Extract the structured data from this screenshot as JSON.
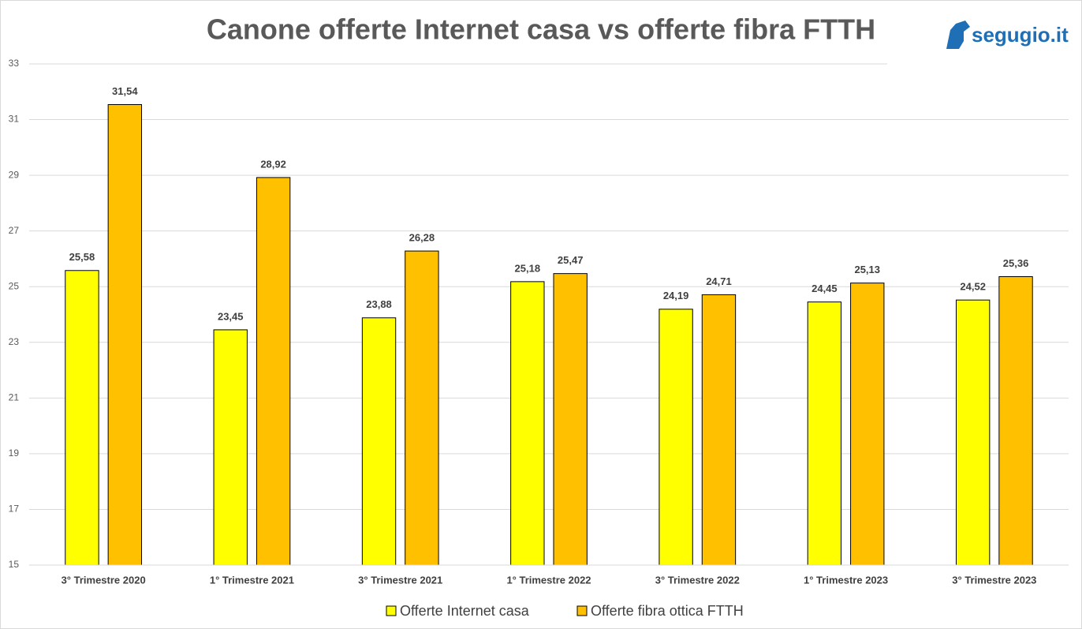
{
  "chart_data": {
    "type": "bar",
    "title": "Canone offerte Internet casa vs offerte fibra FTTH",
    "logo": "segugio.it",
    "categories": [
      "3° Trimestre 2020",
      "1° Trimestre 2021",
      "3° Trimestre 2021",
      "1° Trimestre 2022",
      "3° Trimestre 2022",
      "1° Trimestre 2023",
      "3° Trimestre 2023"
    ],
    "series": [
      {
        "name": "Offerte Internet casa",
        "color": "#ffff00",
        "values": [
          25.58,
          23.45,
          23.88,
          25.18,
          24.19,
          24.45,
          24.52
        ],
        "value_labels": [
          "25,58",
          "23,45",
          "23,88",
          "25,18",
          "24,19",
          "24,45",
          "24,52"
        ]
      },
      {
        "name": "Offerte fibra ottica FTTH",
        "color": "#ffc000",
        "values": [
          31.54,
          28.92,
          26.28,
          25.47,
          24.71,
          25.13,
          25.36
        ],
        "value_labels": [
          "31,54",
          "28,92",
          "26,28",
          "25,47",
          "24,71",
          "25,13",
          "25,36"
        ]
      }
    ],
    "ylim": [
      15,
      33
    ],
    "yticks": [
      15,
      17,
      19,
      21,
      23,
      25,
      27,
      29,
      31,
      33
    ],
    "grid": true,
    "legend": "bottom"
  }
}
